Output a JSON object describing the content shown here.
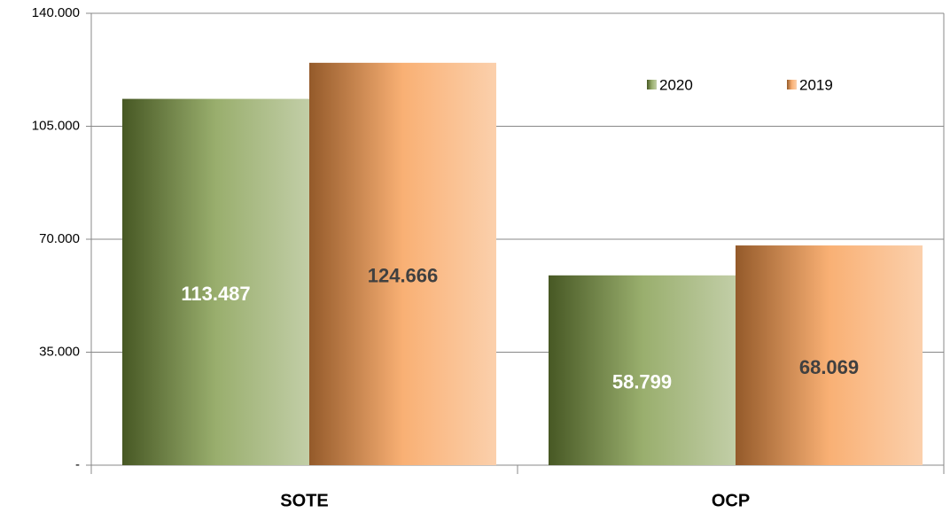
{
  "chart_data": {
    "type": "bar",
    "categories": [
      "SOTE",
      "OCP"
    ],
    "series": [
      {
        "name": "2020",
        "color": "#77933c",
        "values": [
          113487,
          58799
        ],
        "value_labels": [
          "113.487",
          "58.799"
        ]
      },
      {
        "name": "2019",
        "color": "#f79646",
        "values": [
          124666,
          68069
        ],
        "value_labels": [
          "124.666",
          "68.069"
        ]
      }
    ],
    "ylim": [
      0,
      140000
    ],
    "yticks": [
      {
        "value": 0,
        "label": "-"
      },
      {
        "value": 35000,
        "label": "35.000"
      },
      {
        "value": 70000,
        "label": "70.000"
      },
      {
        "value": 105000,
        "label": "105.000"
      },
      {
        "value": 140000,
        "label": "140.000"
      }
    ],
    "grid": true,
    "legend": "upper right"
  }
}
